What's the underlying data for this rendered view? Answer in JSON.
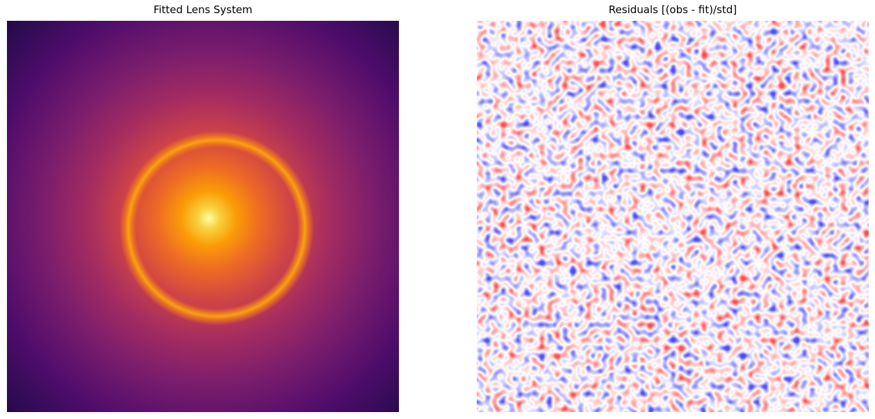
{
  "chart_data": [
    {
      "type": "image",
      "title": "Fitted Lens System"
    },
    {
      "type": "image",
      "title": "Residuals [(obs - fit)/std]"
    }
  ]
}
